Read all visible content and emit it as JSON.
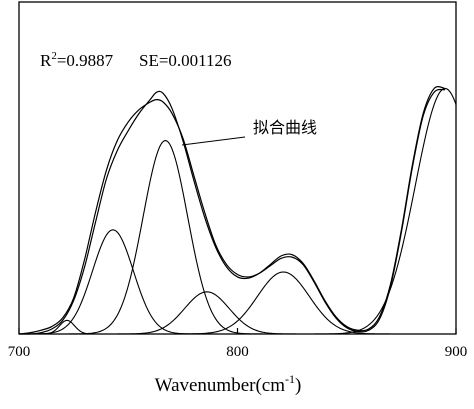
{
  "chart_data": {
    "type": "line",
    "title": "",
    "xlabel": "Wavenumber(cm",
    "xlabel_sup": "-1",
    "xlabel_end": ")",
    "ylabel": "",
    "xlim": [
      700,
      900
    ],
    "ylim": [
      0,
      1
    ],
    "x_ticks": [
      700,
      800,
      900
    ],
    "x_tick_labels": [
      "700",
      "800",
      "900"
    ],
    "grid": false,
    "y_tick_labels_shown": false,
    "annotation": {
      "r2_prefix": "R",
      "r2_sup": "2",
      "r2_value": "=0.9887",
      "se_text": "SE=0.001126"
    },
    "fit_label": "拟合曲线",
    "series": [
      {
        "kind": "measured",
        "x": [
          700,
          705,
          710,
          715,
          720,
          725,
          730,
          735,
          740,
          745,
          750,
          755,
          760,
          763,
          766,
          770,
          775,
          780,
          785,
          790,
          795,
          800,
          805,
          810,
          815,
          820,
          825,
          830,
          835,
          840,
          845,
          850,
          855,
          860,
          865,
          870,
          875,
          880,
          885,
          890,
          895
        ],
        "values": [
          0.0,
          0.0,
          0.005,
          0.02,
          0.055,
          0.135,
          0.27,
          0.45,
          0.625,
          0.74,
          0.82,
          0.89,
          0.945,
          0.975,
          0.97,
          0.91,
          0.78,
          0.62,
          0.47,
          0.35,
          0.27,
          0.23,
          0.225,
          0.245,
          0.28,
          0.315,
          0.32,
          0.285,
          0.215,
          0.135,
          0.07,
          0.03,
          0.015,
          0.02,
          0.07,
          0.2,
          0.42,
          0.68,
          0.89,
          0.99,
          0.99
        ]
      },
      {
        "kind": "fit",
        "x": [
          700,
          705,
          710,
          715,
          720,
          725,
          730,
          735,
          740,
          745,
          750,
          755,
          760,
          763,
          766,
          770,
          775,
          780,
          785,
          790,
          795,
          800,
          805,
          810,
          815,
          820,
          825,
          830,
          835,
          840,
          845,
          850,
          855,
          860,
          865,
          870,
          875,
          880,
          885,
          890,
          895
        ],
        "values": [
          0.0,
          0.005,
          0.015,
          0.03,
          0.065,
          0.145,
          0.3,
          0.49,
          0.66,
          0.78,
          0.855,
          0.905,
          0.935,
          0.945,
          0.935,
          0.89,
          0.79,
          0.64,
          0.49,
          0.36,
          0.28,
          0.24,
          0.23,
          0.245,
          0.275,
          0.305,
          0.31,
          0.28,
          0.21,
          0.13,
          0.065,
          0.025,
          0.01,
          0.015,
          0.06,
          0.19,
          0.41,
          0.67,
          0.88,
          0.975,
          0.985
        ]
      }
    ],
    "component_peaks": [
      {
        "center": 722,
        "amplitude": 0.055,
        "fwhm": 8
      },
      {
        "center": 743,
        "amplitude": 0.42,
        "fwhm": 22
      },
      {
        "center": 767,
        "amplitude": 0.78,
        "fwhm": 24
      },
      {
        "center": 786,
        "amplitude": 0.17,
        "fwhm": 24
      },
      {
        "center": 821,
        "amplitude": 0.25,
        "fwhm": 28
      },
      {
        "center": 895,
        "amplitude": 0.99,
        "fwhm": 32
      }
    ]
  }
}
